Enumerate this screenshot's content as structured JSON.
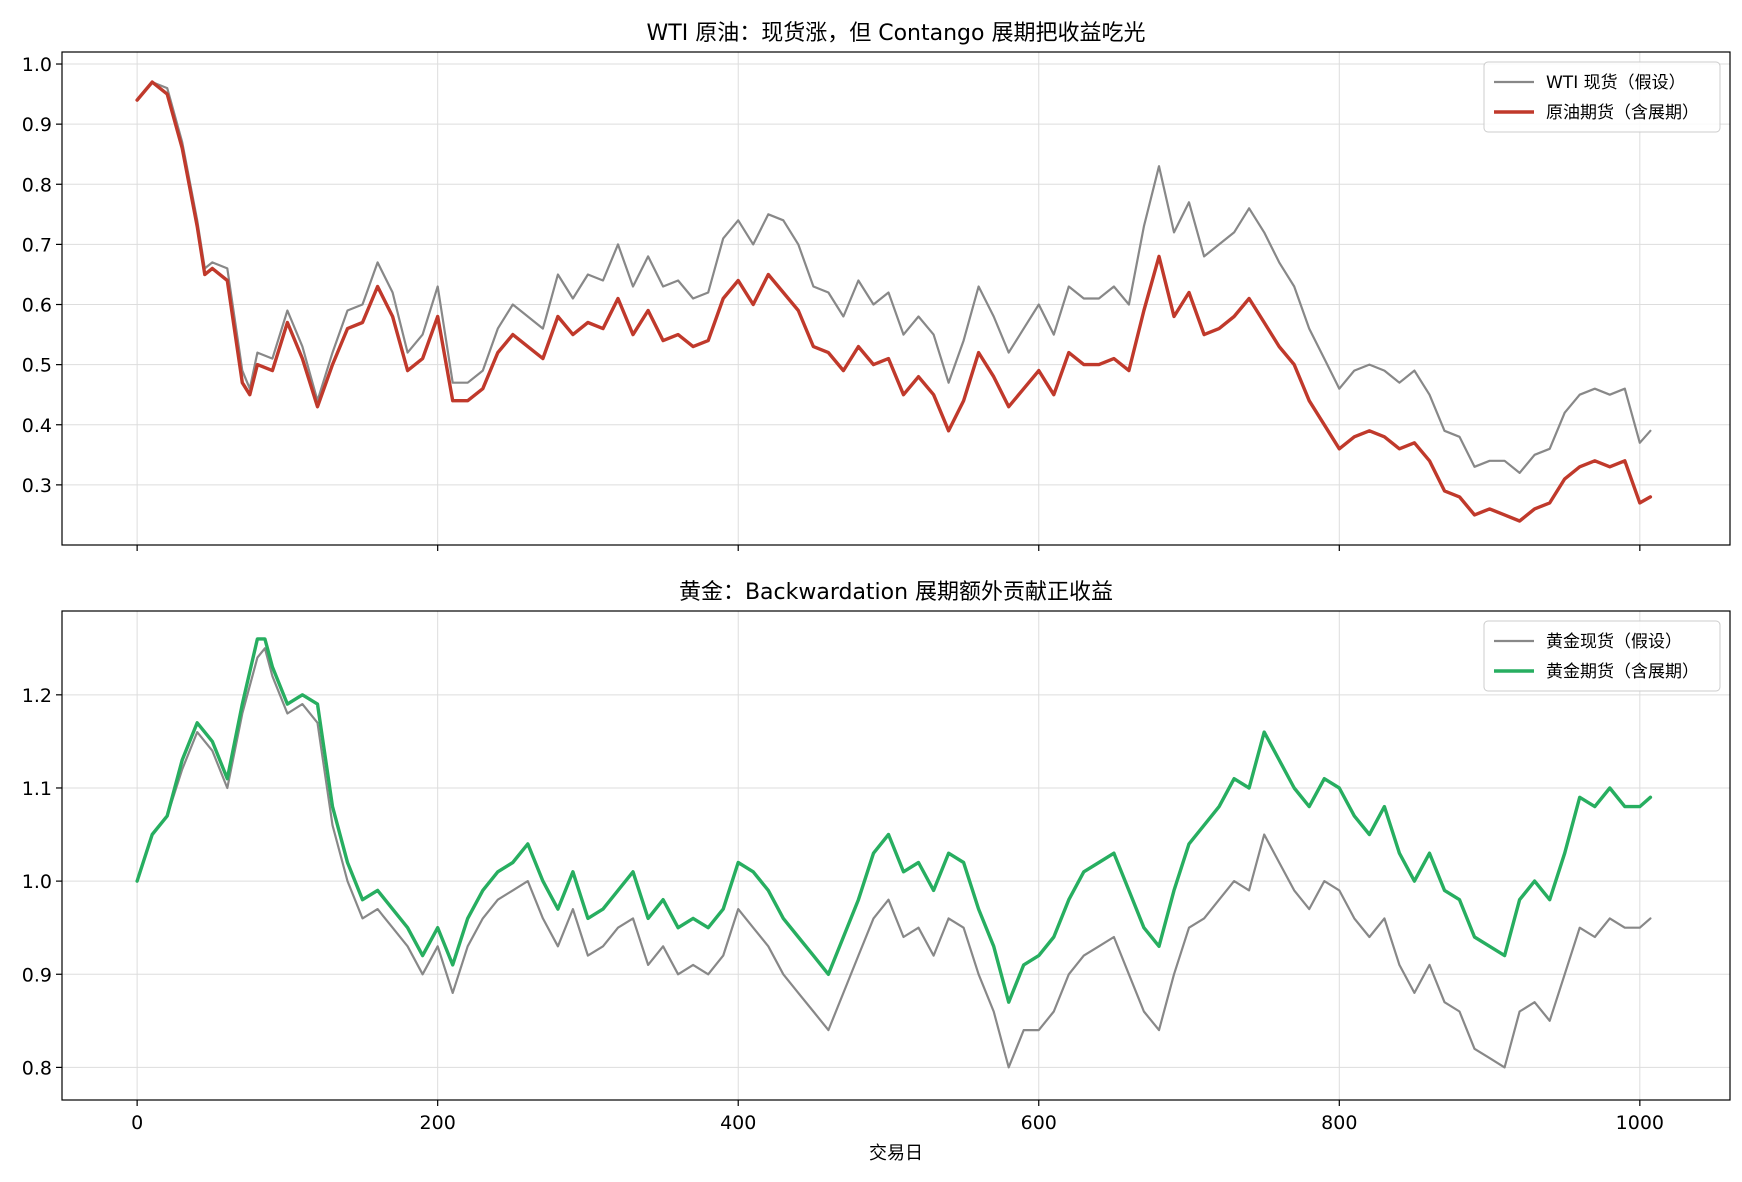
{
  "chart_data": [
    {
      "type": "line",
      "title": "WTI 原油：现货涨，但 Contango 展期把收益吃光",
      "xlim": [
        -50,
        1060
      ],
      "ylim": [
        0.2,
        1.02
      ],
      "yticks": [
        0.3,
        0.4,
        0.5,
        0.6,
        0.7,
        0.8,
        0.9,
        1.0
      ],
      "xticks": [
        0,
        200,
        400,
        600,
        800,
        1000
      ],
      "grid": true,
      "legend_position": "top-right",
      "series": [
        {
          "name": "WTI 现货（假设）",
          "color": "#888888",
          "x": [
            0,
            10,
            20,
            30,
            40,
            45,
            50,
            60,
            70,
            75,
            80,
            90,
            100,
            110,
            120,
            130,
            140,
            150,
            160,
            170,
            180,
            190,
            200,
            210,
            220,
            230,
            240,
            250,
            260,
            270,
            280,
            290,
            300,
            310,
            320,
            330,
            340,
            350,
            360,
            370,
            380,
            390,
            400,
            410,
            420,
            430,
            440,
            450,
            460,
            470,
            480,
            490,
            500,
            510,
            520,
            530,
            540,
            550,
            560,
            570,
            580,
            590,
            600,
            610,
            620,
            630,
            640,
            650,
            660,
            670,
            680,
            690,
            700,
            710,
            720,
            730,
            740,
            750,
            760,
            770,
            780,
            790,
            800,
            810,
            820,
            830,
            840,
            850,
            860,
            870,
            880,
            890,
            900,
            910,
            920,
            930,
            940,
            950,
            960,
            970,
            980,
            990,
            1000,
            1007
          ],
          "y": [
            0.94,
            0.97,
            0.96,
            0.87,
            0.74,
            0.66,
            0.67,
            0.66,
            0.49,
            0.46,
            0.52,
            0.51,
            0.59,
            0.53,
            0.44,
            0.52,
            0.59,
            0.6,
            0.67,
            0.62,
            0.52,
            0.55,
            0.63,
            0.47,
            0.47,
            0.49,
            0.56,
            0.6,
            0.58,
            0.56,
            0.65,
            0.61,
            0.65,
            0.64,
            0.7,
            0.63,
            0.68,
            0.63,
            0.64,
            0.61,
            0.62,
            0.71,
            0.74,
            0.7,
            0.75,
            0.74,
            0.7,
            0.63,
            0.62,
            0.58,
            0.64,
            0.6,
            0.62,
            0.55,
            0.58,
            0.55,
            0.47,
            0.54,
            0.63,
            0.58,
            0.52,
            0.56,
            0.6,
            0.55,
            0.63,
            0.61,
            0.61,
            0.63,
            0.6,
            0.73,
            0.83,
            0.72,
            0.77,
            0.68,
            0.7,
            0.72,
            0.76,
            0.72,
            0.67,
            0.63,
            0.56,
            0.51,
            0.46,
            0.49,
            0.5,
            0.49,
            0.47,
            0.49,
            0.45,
            0.39,
            0.38,
            0.33,
            0.34,
            0.34,
            0.32,
            0.35,
            0.36,
            0.42,
            0.45,
            0.46,
            0.45,
            0.46,
            0.37,
            0.39
          ]
        },
        {
          "name": "原油期货（含展期）",
          "color": "#c0392b",
          "x": [
            0,
            10,
            20,
            30,
            40,
            45,
            50,
            60,
            70,
            75,
            80,
            90,
            100,
            110,
            120,
            130,
            140,
            150,
            160,
            170,
            180,
            190,
            200,
            210,
            220,
            230,
            240,
            250,
            260,
            270,
            280,
            290,
            300,
            310,
            320,
            330,
            340,
            350,
            360,
            370,
            380,
            390,
            400,
            410,
            420,
            430,
            440,
            450,
            460,
            470,
            480,
            490,
            500,
            510,
            520,
            530,
            540,
            550,
            560,
            570,
            580,
            590,
            600,
            610,
            620,
            630,
            640,
            650,
            660,
            670,
            680,
            690,
            700,
            710,
            720,
            730,
            740,
            750,
            760,
            770,
            780,
            790,
            800,
            810,
            820,
            830,
            840,
            850,
            860,
            870,
            880,
            890,
            900,
            910,
            920,
            930,
            940,
            950,
            960,
            970,
            980,
            990,
            1000,
            1007
          ],
          "y": [
            0.94,
            0.97,
            0.95,
            0.86,
            0.73,
            0.65,
            0.66,
            0.64,
            0.47,
            0.45,
            0.5,
            0.49,
            0.57,
            0.51,
            0.43,
            0.5,
            0.56,
            0.57,
            0.63,
            0.58,
            0.49,
            0.51,
            0.58,
            0.44,
            0.44,
            0.46,
            0.52,
            0.55,
            0.53,
            0.51,
            0.58,
            0.55,
            0.57,
            0.56,
            0.61,
            0.55,
            0.59,
            0.54,
            0.55,
            0.53,
            0.54,
            0.61,
            0.64,
            0.6,
            0.65,
            0.62,
            0.59,
            0.53,
            0.52,
            0.49,
            0.53,
            0.5,
            0.51,
            0.45,
            0.48,
            0.45,
            0.39,
            0.44,
            0.52,
            0.48,
            0.43,
            0.46,
            0.49,
            0.45,
            0.52,
            0.5,
            0.5,
            0.51,
            0.49,
            0.59,
            0.68,
            0.58,
            0.62,
            0.55,
            0.56,
            0.58,
            0.61,
            0.57,
            0.53,
            0.5,
            0.44,
            0.4,
            0.36,
            0.38,
            0.39,
            0.38,
            0.36,
            0.37,
            0.34,
            0.29,
            0.28,
            0.25,
            0.26,
            0.25,
            0.24,
            0.26,
            0.27,
            0.31,
            0.33,
            0.34,
            0.33,
            0.34,
            0.27,
            0.28
          ]
        }
      ]
    },
    {
      "type": "line",
      "title": "黄金：Backwardation 展期额外贡献正收益",
      "xlabel": "交易日",
      "xlim": [
        -50,
        1060
      ],
      "ylim": [
        0.765,
        1.29
      ],
      "yticks": [
        0.8,
        0.9,
        1.0,
        1.1,
        1.2
      ],
      "xticks": [
        0,
        200,
        400,
        600,
        800,
        1000
      ],
      "grid": true,
      "legend_position": "top-right",
      "series": [
        {
          "name": "黄金现货（假设）",
          "color": "#888888",
          "x": [
            0,
            10,
            20,
            30,
            40,
            50,
            60,
            70,
            80,
            85,
            90,
            100,
            110,
            120,
            130,
            140,
            150,
            160,
            170,
            180,
            190,
            200,
            210,
            220,
            230,
            240,
            250,
            260,
            270,
            280,
            290,
            300,
            310,
            320,
            330,
            340,
            350,
            360,
            370,
            380,
            390,
            400,
            410,
            420,
            430,
            440,
            450,
            460,
            470,
            480,
            490,
            500,
            510,
            520,
            530,
            540,
            550,
            560,
            570,
            580,
            590,
            600,
            610,
            620,
            630,
            640,
            650,
            660,
            670,
            680,
            690,
            700,
            710,
            720,
            730,
            740,
            750,
            760,
            770,
            780,
            790,
            800,
            810,
            820,
            830,
            840,
            850,
            860,
            870,
            880,
            890,
            900,
            910,
            920,
            930,
            940,
            950,
            960,
            970,
            980,
            990,
            1000,
            1007
          ],
          "y": [
            1.0,
            1.05,
            1.07,
            1.12,
            1.16,
            1.14,
            1.1,
            1.18,
            1.24,
            1.25,
            1.22,
            1.18,
            1.19,
            1.17,
            1.06,
            1.0,
            0.96,
            0.97,
            0.95,
            0.93,
            0.9,
            0.93,
            0.88,
            0.93,
            0.96,
            0.98,
            0.99,
            1.0,
            0.96,
            0.93,
            0.97,
            0.92,
            0.93,
            0.95,
            0.96,
            0.91,
            0.93,
            0.9,
            0.91,
            0.9,
            0.92,
            0.97,
            0.95,
            0.93,
            0.9,
            0.88,
            0.86,
            0.84,
            0.88,
            0.92,
            0.96,
            0.98,
            0.94,
            0.95,
            0.92,
            0.96,
            0.95,
            0.9,
            0.86,
            0.8,
            0.84,
            0.84,
            0.86,
            0.9,
            0.92,
            0.93,
            0.94,
            0.9,
            0.86,
            0.84,
            0.9,
            0.95,
            0.96,
            0.98,
            1.0,
            0.99,
            1.05,
            1.02,
            0.99,
            0.97,
            1.0,
            0.99,
            0.96,
            0.94,
            0.96,
            0.91,
            0.88,
            0.91,
            0.87,
            0.86,
            0.82,
            0.81,
            0.8,
            0.86,
            0.87,
            0.85,
            0.9,
            0.95,
            0.94,
            0.96,
            0.95,
            0.95,
            0.96
          ]
        },
        {
          "name": "黄金期货（含展期）",
          "color": "#27ae60",
          "x": [
            0,
            10,
            20,
            30,
            40,
            50,
            60,
            70,
            80,
            85,
            90,
            100,
            110,
            120,
            130,
            140,
            150,
            160,
            170,
            180,
            190,
            200,
            210,
            220,
            230,
            240,
            250,
            260,
            270,
            280,
            290,
            300,
            310,
            320,
            330,
            340,
            350,
            360,
            370,
            380,
            390,
            400,
            410,
            420,
            430,
            440,
            450,
            460,
            470,
            480,
            490,
            500,
            510,
            520,
            530,
            540,
            550,
            560,
            570,
            580,
            590,
            600,
            610,
            620,
            630,
            640,
            650,
            660,
            670,
            680,
            690,
            700,
            710,
            720,
            730,
            740,
            750,
            760,
            770,
            780,
            790,
            800,
            810,
            820,
            830,
            840,
            850,
            860,
            870,
            880,
            890,
            900,
            910,
            920,
            930,
            940,
            950,
            960,
            970,
            980,
            990,
            1000,
            1007
          ],
          "y": [
            1.0,
            1.05,
            1.07,
            1.13,
            1.17,
            1.15,
            1.11,
            1.19,
            1.26,
            1.26,
            1.23,
            1.19,
            1.2,
            1.19,
            1.08,
            1.02,
            0.98,
            0.99,
            0.97,
            0.95,
            0.92,
            0.95,
            0.91,
            0.96,
            0.99,
            1.01,
            1.02,
            1.04,
            1.0,
            0.97,
            1.01,
            0.96,
            0.97,
            0.99,
            1.01,
            0.96,
            0.98,
            0.95,
            0.96,
            0.95,
            0.97,
            1.02,
            1.01,
            0.99,
            0.96,
            0.94,
            0.92,
            0.9,
            0.94,
            0.98,
            1.03,
            1.05,
            1.01,
            1.02,
            0.99,
            1.03,
            1.02,
            0.97,
            0.93,
            0.87,
            0.91,
            0.92,
            0.94,
            0.98,
            1.01,
            1.02,
            1.03,
            0.99,
            0.95,
            0.93,
            0.99,
            1.04,
            1.06,
            1.08,
            1.11,
            1.1,
            1.16,
            1.13,
            1.1,
            1.08,
            1.11,
            1.1,
            1.07,
            1.05,
            1.08,
            1.03,
            1.0,
            1.03,
            0.99,
            0.98,
            0.94,
            0.93,
            0.92,
            0.98,
            1.0,
            0.98,
            1.03,
            1.09,
            1.08,
            1.1,
            1.08,
            1.08,
            1.09
          ]
        }
      ]
    }
  ]
}
